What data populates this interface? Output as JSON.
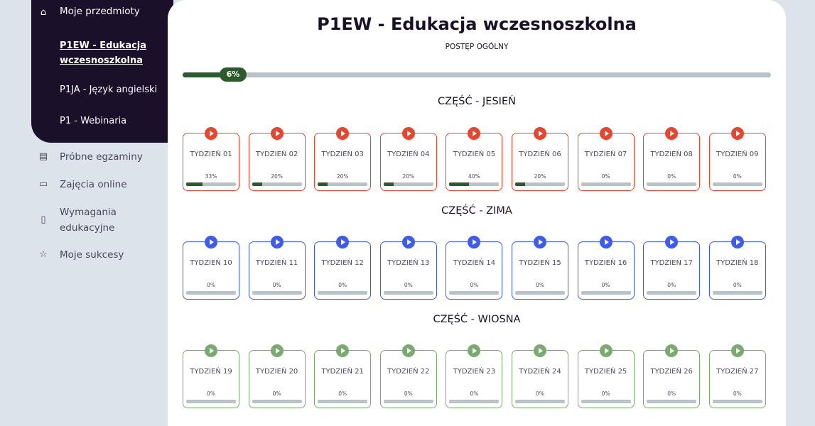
{
  "sidebar": {
    "main_item": "Moje przedmioty",
    "subjects": [
      "P1EW - Edukacja wczesnoszkolna",
      "P1JA - Język angielski",
      "P1 - Webinaria"
    ],
    "items": [
      {
        "label": "Próbne egzaminy",
        "icon": "document-icon"
      },
      {
        "label": "Zajęcia online",
        "icon": "monitor-icon"
      },
      {
        "label": "Wymagania edukacyjne",
        "icon": "clipboard-icon"
      },
      {
        "label": "Moje sukcesy",
        "icon": "star-icon"
      }
    ]
  },
  "header": {
    "title": "P1EW - Edukacja wczesnoszkolna",
    "progress_label": "POSTĘP OGÓLNY",
    "progress": 6,
    "progress_text": "6%"
  },
  "colors": {
    "autumn": "#e8452c",
    "winter": "#3d5af1",
    "spring": "#7aab6e",
    "progress": "#2d5a2d",
    "track": "#b8c2c9"
  },
  "sections": [
    {
      "title": "CZĘŚĆ - JESIEŃ",
      "color": "#e8452c",
      "weeks": [
        {
          "label": "TYDZIEŃ 01",
          "progress": 33
        },
        {
          "label": "TYDZIEŃ 02",
          "progress": 20
        },
        {
          "label": "TYDZIEŃ 03",
          "progress": 20
        },
        {
          "label": "TYDZIEŃ 04",
          "progress": 20
        },
        {
          "label": "TYDZIEŃ 05",
          "progress": 40
        },
        {
          "label": "TYDZIEŃ 06",
          "progress": 20
        },
        {
          "label": "TYDZIEŃ 07",
          "progress": 0
        },
        {
          "label": "TYDZIEŃ 08",
          "progress": 0
        },
        {
          "label": "TYDZIEŃ 09",
          "progress": 0
        }
      ]
    },
    {
      "title": "CZĘŚĆ - ZIMA",
      "color": "#3d5af1",
      "weeks": [
        {
          "label": "TYDZIEŃ 10",
          "progress": 0
        },
        {
          "label": "TYDZIEŃ 11",
          "progress": 0
        },
        {
          "label": "TYDZIEŃ 12",
          "progress": 0
        },
        {
          "label": "TYDZIEŃ 13",
          "progress": 0
        },
        {
          "label": "TYDZIEŃ 14",
          "progress": 0
        },
        {
          "label": "TYDZIEŃ 15",
          "progress": 0
        },
        {
          "label": "TYDZIEŃ 16",
          "progress": 0
        },
        {
          "label": "TYDZIEŃ 17",
          "progress": 0
        },
        {
          "label": "TYDZIEŃ 18",
          "progress": 0
        }
      ]
    },
    {
      "title": "CZĘŚĆ - WIOSNA",
      "color": "#7aab6e",
      "weeks": [
        {
          "label": "TYDZIEŃ 19",
          "progress": 0
        },
        {
          "label": "TYDZIEŃ 20",
          "progress": 0
        },
        {
          "label": "TYDZIEŃ 21",
          "progress": 0
        },
        {
          "label": "TYDZIEŃ 22",
          "progress": 0
        },
        {
          "label": "TYDZIEŃ 23",
          "progress": 0
        },
        {
          "label": "TYDZIEŃ 24",
          "progress": 0
        },
        {
          "label": "TYDZIEŃ 25",
          "progress": 0
        },
        {
          "label": "TYDZIEŃ 26",
          "progress": 0
        },
        {
          "label": "TYDZIEŃ 27",
          "progress": 0
        }
      ]
    }
  ]
}
